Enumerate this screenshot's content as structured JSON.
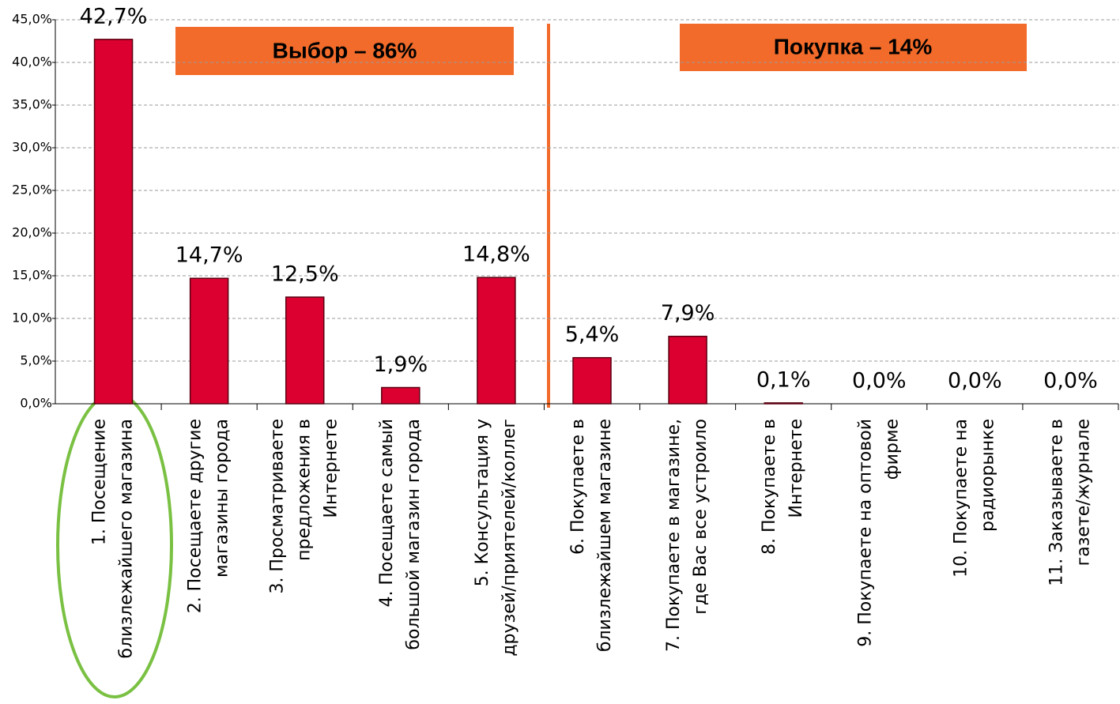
{
  "chart_data": {
    "type": "bar",
    "categories": [
      "1. Посещение\nблизлежайшего магазина",
      "2. Посещаете другие\nмагазины города",
      "3. Просматриваете\nпредложения в\nИнтернете",
      "4. Посещаете самый\nбольшой магазин города",
      "5. Консультация у\nдрузей/приятелей/коллег",
      "6. Покупаете в\nблизлежайшем магазине",
      "7. Покупаете в магазине,\nгде Вас все устроило",
      "8. Покупаете в\nИнтернете",
      "9. Покупаете на оптовой\nфирме",
      "10. Покупаете на\nрадиорынке",
      "11. Заказываете в\nгазете/журнале"
    ],
    "values": [
      42.7,
      14.7,
      12.5,
      1.9,
      14.8,
      5.4,
      7.9,
      0.1,
      0.0,
      0.0,
      0.0
    ],
    "value_labels": [
      "42,7%",
      "14,7%",
      "12,5%",
      "1,9%",
      "14,8%",
      "5,4%",
      "7,9%",
      "0,1%",
      "0,0%",
      "0,0%",
      "0,0%"
    ],
    "color": "#dc0030",
    "ylim": [
      0,
      45
    ],
    "yticks": [
      {
        "value": 0,
        "label": "0,0%"
      },
      {
        "value": 5,
        "label": "5,0%"
      },
      {
        "value": 10,
        "label": "10,0%"
      },
      {
        "value": 15,
        "label": "15,0%"
      },
      {
        "value": 20,
        "label": "20,0%"
      },
      {
        "value": 25,
        "label": "25,0%"
      },
      {
        "value": 30,
        "label": "30,0%"
      },
      {
        "value": 35,
        "label": "35,0%"
      },
      {
        "value": 40,
        "label": "40,0%"
      },
      {
        "value": 45,
        "label": "45,0%"
      }
    ],
    "grid": true,
    "annotations": [
      "Выбор – 86%",
      "Покупка – 14%"
    ]
  }
}
